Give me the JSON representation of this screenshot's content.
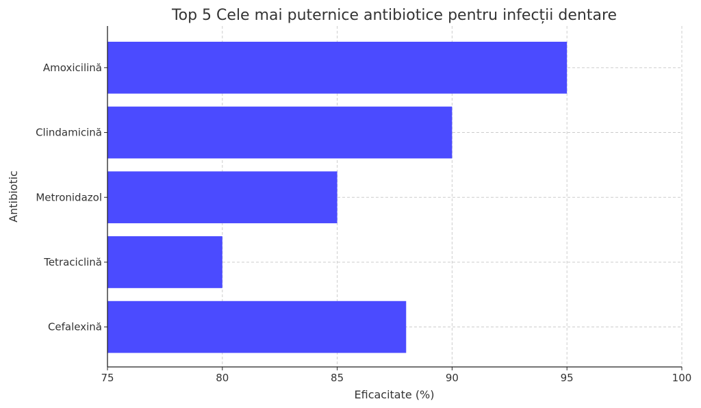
{
  "chart_data": {
    "type": "bar",
    "orientation": "horizontal",
    "title": "Top 5 Cele mai puternice antibiotice pentru infecții dentare",
    "xlabel": "Eficacitate (%)",
    "ylabel": "Antibiotic",
    "categories": [
      "Amoxicilină",
      "Clindamicină",
      "Metronidazol",
      "Tetraciclină",
      "Cefalexină"
    ],
    "values": [
      95,
      90,
      85,
      80,
      88
    ],
    "xlim": [
      75,
      100
    ],
    "xticks": [
      "75",
      "80",
      "85",
      "90",
      "95",
      "100"
    ],
    "grid": true,
    "bar_color": "#4b4bff"
  }
}
